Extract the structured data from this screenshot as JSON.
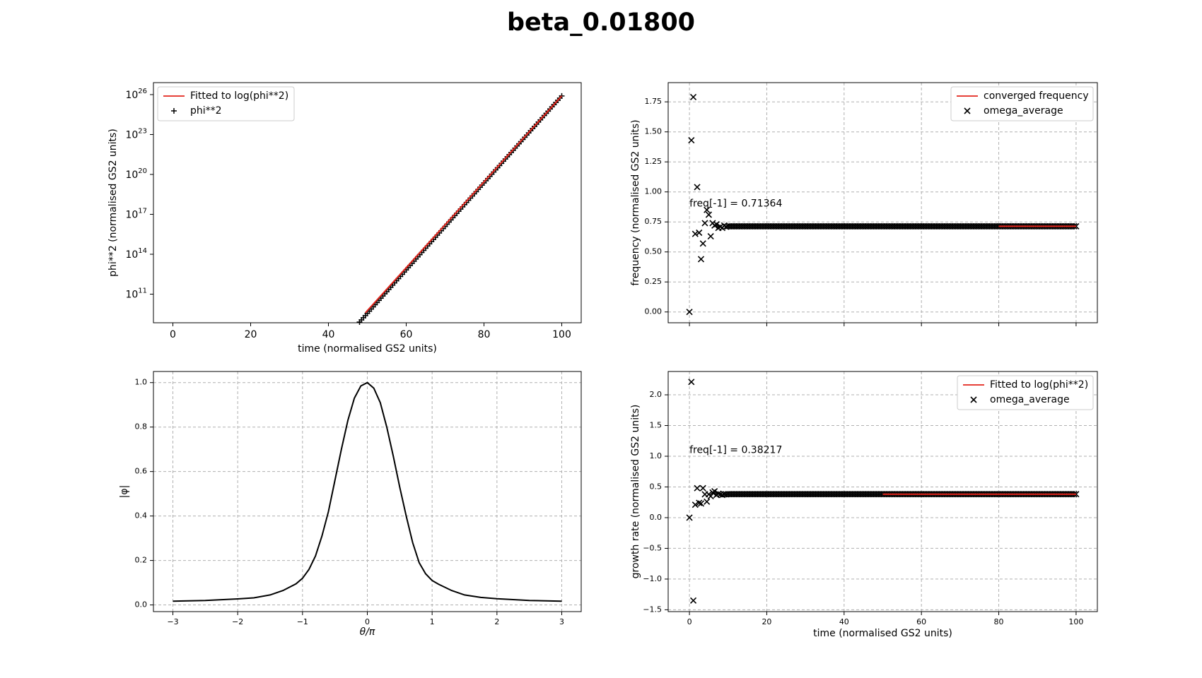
{
  "figure": {
    "title": "beta_0.01800"
  },
  "chart_data": [
    {
      "id": "growth_log",
      "type": "scatter",
      "xlabel": "time (normalised GS2 units)",
      "ylabel": "phi**2 (normalised GS2 units)",
      "xscale": "linear",
      "yscale": "log",
      "xlim": [
        -5,
        105
      ],
      "ylim_log10": [
        8.85,
        26.9
      ],
      "xticks": [
        0,
        20,
        40,
        60,
        80,
        100
      ],
      "xtick_labels": [
        "0",
        "20",
        "40",
        "60",
        "80",
        "100"
      ],
      "ytick_exponents": [
        11,
        14,
        17,
        20,
        23,
        26
      ],
      "grid": false,
      "legend": {
        "position": "top-left",
        "entries": [
          "Fitted to log(phi**2)",
          "phi**2"
        ]
      },
      "series": [
        {
          "name": "Fitted to log(phi**2)",
          "type": "line",
          "color": "#e3241b",
          "x": [
            49.5,
            100.0
          ],
          "log10_y": [
            9.6,
            25.9
          ]
        },
        {
          "name": "phi**2",
          "type": "scatter",
          "marker": "+",
          "x_start": 48.0,
          "x_end": 100.0,
          "x_step": 0.5,
          "log10_y_start": 8.9,
          "log10_y_end": 25.9
        }
      ]
    },
    {
      "id": "frequency",
      "type": "scatter",
      "xlabel": "",
      "ylabel": "frequency (normalised GS2 units)",
      "xlim": [
        -5.5,
        105.5
      ],
      "ylim": [
        -0.09,
        1.91
      ],
      "xticks": [
        0,
        20,
        40,
        60,
        80,
        100
      ],
      "yticks": [
        0.0,
        0.25,
        0.5,
        0.75,
        1.0,
        1.25,
        1.5,
        1.75
      ],
      "ytick_labels": [
        "0.00",
        "0.25",
        "0.50",
        "0.75",
        "1.00",
        "1.25",
        "1.50",
        "1.75"
      ],
      "show_xtick_labels": false,
      "grid": true,
      "annotation": {
        "text": "freq[-1] = 0.71364",
        "x": 0,
        "y": 0.9
      },
      "legend": {
        "position": "top-right",
        "entries": [
          "converged frequency",
          "omega_average"
        ]
      },
      "series": [
        {
          "name": "converged frequency",
          "type": "line",
          "color": "#e3241b",
          "x": [
            80,
            100
          ],
          "y": [
            0.71364,
            0.71364
          ]
        },
        {
          "name": "omega_average",
          "type": "scatter",
          "marker": "x",
          "points": [
            [
              0.0,
              0.0
            ],
            [
              0.5,
              1.43
            ],
            [
              1.0,
              1.79
            ],
            [
              1.5,
              0.65
            ],
            [
              2.0,
              1.04
            ],
            [
              2.5,
              0.66
            ],
            [
              3.0,
              0.44
            ],
            [
              3.5,
              0.57
            ],
            [
              4.0,
              0.74
            ],
            [
              4.5,
              0.85
            ],
            [
              5.0,
              0.81
            ],
            [
              5.5,
              0.63
            ],
            [
              6.0,
              0.74
            ],
            [
              6.5,
              0.72
            ],
            [
              7.0,
              0.73
            ],
            [
              7.5,
              0.7
            ],
            [
              8.0,
              0.71
            ],
            [
              8.5,
              0.7
            ],
            [
              9.0,
              0.72
            ],
            [
              9.5,
              0.71
            ]
          ],
          "converged": {
            "x_start": 10.0,
            "x_end": 100.0,
            "x_step": 0.5,
            "y": 0.71364
          }
        }
      ]
    },
    {
      "id": "eigenfunction",
      "type": "line",
      "xlabel": "θ/π",
      "ylabel": "|φ|",
      "xlim": [
        -3.3,
        3.3
      ],
      "ylim": [
        -0.03,
        1.05
      ],
      "xticks": [
        -3,
        -2,
        -1,
        0,
        1,
        2,
        3
      ],
      "xtick_labels": [
        "−3",
        "−2",
        "−1",
        "0",
        "1",
        "2",
        "3"
      ],
      "yticks": [
        0.0,
        0.2,
        0.4,
        0.6,
        0.8,
        1.0
      ],
      "ytick_labels": [
        "0.0",
        "0.2",
        "0.4",
        "0.6",
        "0.8",
        "1.0"
      ],
      "grid": true,
      "series": [
        {
          "name": "",
          "color": "#000000",
          "x": [
            -3.0,
            -2.5,
            -2.0,
            -1.75,
            -1.5,
            -1.3,
            -1.1,
            -1.0,
            -0.9,
            -0.8,
            -0.7,
            -0.6,
            -0.5,
            -0.4,
            -0.3,
            -0.2,
            -0.1,
            0.0,
            0.1,
            0.2,
            0.3,
            0.4,
            0.5,
            0.6,
            0.7,
            0.8,
            0.9,
            1.0,
            1.1,
            1.3,
            1.5,
            1.75,
            2.0,
            2.5,
            3.0
          ],
          "y": [
            0.017,
            0.02,
            0.027,
            0.032,
            0.045,
            0.065,
            0.095,
            0.12,
            0.16,
            0.22,
            0.31,
            0.42,
            0.56,
            0.7,
            0.83,
            0.93,
            0.985,
            1.0,
            0.975,
            0.91,
            0.8,
            0.67,
            0.53,
            0.4,
            0.28,
            0.19,
            0.14,
            0.11,
            0.093,
            0.065,
            0.045,
            0.034,
            0.028,
            0.02,
            0.017
          ]
        }
      ]
    },
    {
      "id": "growth_rate",
      "type": "scatter",
      "xlabel": "time (normalised GS2 units)",
      "ylabel": "growth rate (normalised GS2 units)",
      "xlim": [
        -5.5,
        105.5
      ],
      "ylim": [
        -1.53,
        2.38
      ],
      "xticks": [
        0,
        20,
        40,
        60,
        80,
        100
      ],
      "xtick_labels": [
        "0",
        "20",
        "40",
        "60",
        "80",
        "100"
      ],
      "yticks": [
        -1.5,
        -1.0,
        -0.5,
        0.0,
        0.5,
        1.0,
        1.5,
        2.0
      ],
      "ytick_labels": [
        "−1.5",
        "−1.0",
        "−0.5",
        "0.0",
        "0.5",
        "1.0",
        "1.5",
        "2.0"
      ],
      "grid": true,
      "annotation": {
        "text": "freq[-1] = 0.38217",
        "x": 0,
        "y": 1.1
      },
      "legend": {
        "position": "top-right",
        "entries": [
          "Fitted to log(phi**2)",
          "omega_average"
        ]
      },
      "series": [
        {
          "name": "Fitted to log(phi**2)",
          "type": "line",
          "color": "#e3241b",
          "x": [
            50,
            100
          ],
          "y": [
            0.38217,
            0.38217
          ]
        },
        {
          "name": "omega_average",
          "type": "scatter",
          "marker": "x",
          "points": [
            [
              0.0,
              0.0
            ],
            [
              0.5,
              2.21
            ],
            [
              1.0,
              -1.35
            ],
            [
              1.5,
              0.21
            ],
            [
              2.0,
              0.48
            ],
            [
              2.5,
              0.24
            ],
            [
              3.0,
              0.23
            ],
            [
              3.5,
              0.48
            ],
            [
              4.0,
              0.38
            ],
            [
              4.5,
              0.26
            ],
            [
              5.0,
              0.38
            ],
            [
              5.5,
              0.35
            ],
            [
              6.0,
              0.41
            ],
            [
              6.5,
              0.43
            ],
            [
              7.0,
              0.37
            ],
            [
              7.5,
              0.39
            ],
            [
              8.0,
              0.38
            ],
            [
              8.5,
              0.37
            ],
            [
              9.0,
              0.38
            ],
            [
              9.5,
              0.38
            ]
          ],
          "converged": {
            "x_start": 10.0,
            "x_end": 100.0,
            "x_step": 0.5,
            "y": 0.38217
          }
        }
      ]
    }
  ]
}
